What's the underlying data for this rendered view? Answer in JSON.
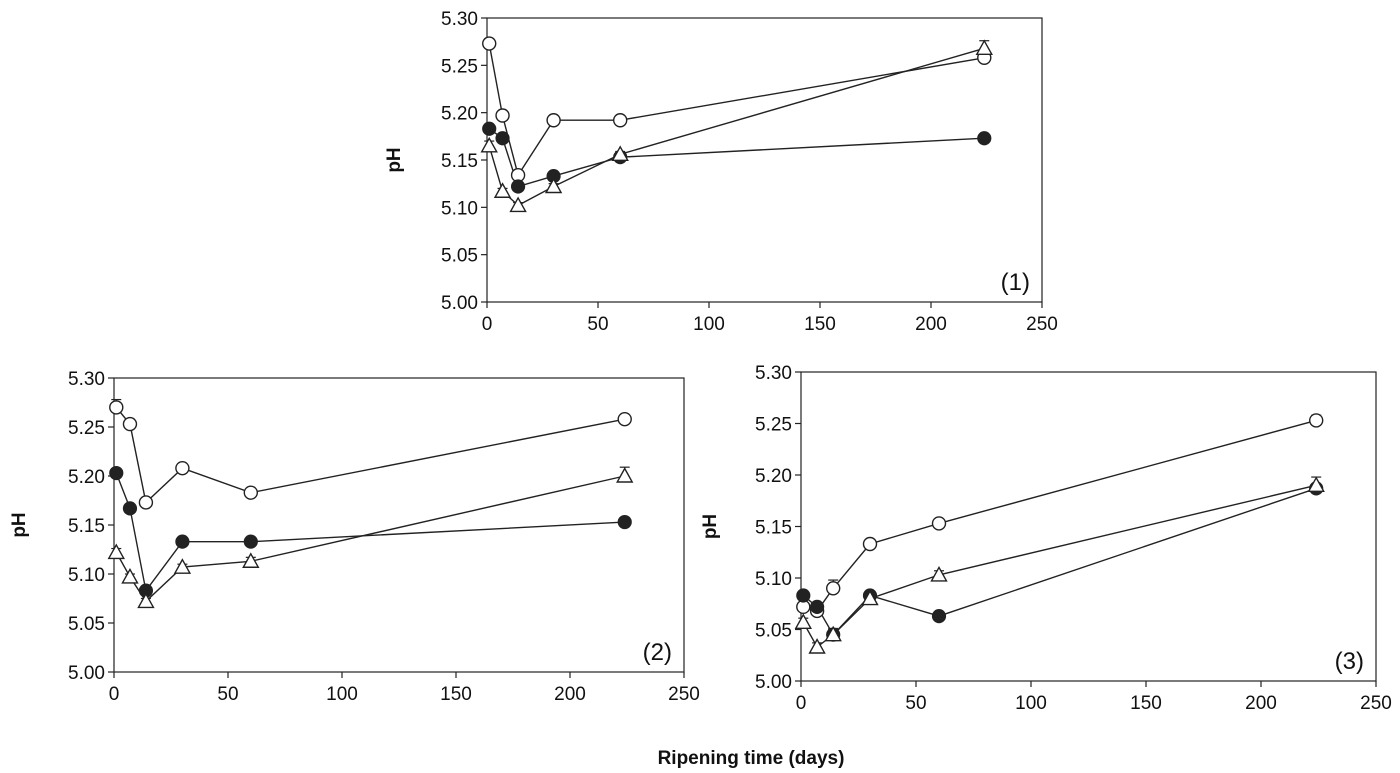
{
  "figure": {
    "common_xlabel": "Ripening time (days)"
  },
  "chart_data": [
    {
      "type": "line",
      "panel_label": "(1)",
      "ylabel": "pH",
      "xlabel": "",
      "xlim": [
        0,
        250
      ],
      "ylim": [
        5.0,
        5.3
      ],
      "xticks": [
        "0",
        "50",
        "100",
        "150",
        "200",
        "250"
      ],
      "yticks": [
        "5.00",
        "5.05",
        "5.10",
        "5.15",
        "5.20",
        "5.25",
        "5.30"
      ],
      "series": [
        {
          "name": "open circles",
          "marker": "circle-open",
          "x": [
            1,
            7,
            14,
            30,
            60,
            224
          ],
          "values": [
            5.273,
            5.197,
            5.134,
            5.192,
            5.192,
            5.258
          ],
          "err": [
            0.005,
            0.004,
            0.003,
            0.002,
            0.003,
            0.004
          ]
        },
        {
          "name": "filled circles",
          "marker": "circle-filled",
          "x": [
            1,
            7,
            14,
            30,
            60,
            224
          ],
          "values": [
            5.183,
            5.173,
            5.122,
            5.133,
            5.153,
            5.173
          ],
          "err": [
            0.003,
            0.003,
            0.004,
            0.002,
            0.003,
            0.004
          ]
        },
        {
          "name": "open triangles",
          "marker": "triangle-open",
          "x": [
            1,
            7,
            14,
            30,
            60,
            224
          ],
          "values": [
            5.165,
            5.117,
            5.102,
            5.122,
            5.156,
            5.268
          ],
          "err": [
            0.005,
            0.003,
            0.003,
            0.003,
            0.003,
            0.008
          ]
        }
      ]
    },
    {
      "type": "line",
      "panel_label": "(2)",
      "ylabel": "pH",
      "xlabel": "",
      "xlim": [
        0,
        250
      ],
      "ylim": [
        5.0,
        5.3
      ],
      "xticks": [
        "0",
        "50",
        "100",
        "150",
        "200",
        "250"
      ],
      "yticks": [
        "5.00",
        "5.05",
        "5.10",
        "5.15",
        "5.20",
        "5.25",
        "5.30"
      ],
      "series": [
        {
          "name": "open circles",
          "marker": "circle-open",
          "x": [
            1,
            7,
            14,
            30,
            60,
            224
          ],
          "values": [
            5.27,
            5.253,
            5.173,
            5.208,
            5.183,
            5.258
          ],
          "err": [
            0.008,
            0.005,
            0.004,
            0.003,
            0.004,
            0.003
          ]
        },
        {
          "name": "filled circles",
          "marker": "circle-filled",
          "x": [
            1,
            7,
            14,
            30,
            60,
            224
          ],
          "values": [
            5.203,
            5.167,
            5.083,
            5.133,
            5.133,
            5.153
          ],
          "err": [
            0.004,
            0.004,
            0.004,
            0.003,
            0.003,
            0.004
          ]
        },
        {
          "name": "open triangles",
          "marker": "triangle-open",
          "x": [
            1,
            7,
            14,
            30,
            60,
            224
          ],
          "values": [
            5.122,
            5.097,
            5.072,
            5.107,
            5.113,
            5.2
          ],
          "err": [
            0.004,
            0.003,
            0.003,
            0.003,
            0.004,
            0.009
          ]
        }
      ]
    },
    {
      "type": "line",
      "panel_label": "(3)",
      "ylabel": "pH",
      "xlabel": "",
      "xlim": [
        0,
        250
      ],
      "ylim": [
        5.0,
        5.3
      ],
      "xticks": [
        "0",
        "50",
        "100",
        "150",
        "200",
        "250"
      ],
      "yticks": [
        "5.00",
        "5.05",
        "5.10",
        "5.15",
        "5.20",
        "5.25",
        "5.30"
      ],
      "series": [
        {
          "name": "open circles",
          "marker": "circle-open",
          "x": [
            1,
            7,
            14,
            30,
            60,
            224
          ],
          "values": [
            5.072,
            5.068,
            5.09,
            5.133,
            5.153,
            5.253
          ],
          "err": [
            0.004,
            0.006,
            0.008,
            0.004,
            0.004,
            0.005
          ]
        },
        {
          "name": "filled circles",
          "marker": "circle-filled",
          "x": [
            1,
            7,
            14,
            30,
            60,
            224
          ],
          "values": [
            5.083,
            5.072,
            5.045,
            5.083,
            5.063,
            5.187
          ],
          "err": [
            0.003,
            0.004,
            0.006,
            0.004,
            0.004,
            0.004
          ]
        },
        {
          "name": "open triangles",
          "marker": "triangle-open",
          "x": [
            1,
            7,
            14,
            30,
            60,
            224
          ],
          "values": [
            5.057,
            5.033,
            5.045,
            5.08,
            5.103,
            5.19
          ],
          "err": [
            0.004,
            0.004,
            0.005,
            0.006,
            0.004,
            0.008
          ]
        }
      ]
    }
  ]
}
